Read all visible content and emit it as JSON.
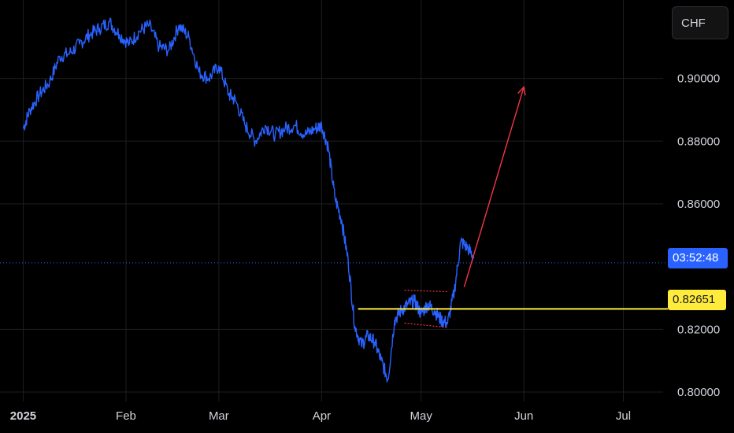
{
  "currency_button": {
    "label": "CHF"
  },
  "countdown_label": "03:52:48",
  "level_label": "0.82651",
  "colors": {
    "background": "#000000",
    "price_line": "#2962ff",
    "level_line": "#ffeb3b",
    "arrow": "#f23645",
    "grid": "#1e1e1e",
    "text": "#d1d4dc"
  },
  "chart_data": {
    "type": "line",
    "series": [
      {
        "x": [
          "2025-01-01",
          "2025-01-03",
          "2025-01-06",
          "2025-01-09",
          "2025-01-12",
          "2025-01-15",
          "2025-01-18",
          "2025-01-21",
          "2025-01-24",
          "2025-01-27",
          "2025-01-30",
          "2025-02-02",
          "2025-02-05",
          "2025-02-08",
          "2025-02-11",
          "2025-02-14",
          "2025-02-17",
          "2025-02-20",
          "2025-02-23",
          "2025-02-26",
          "2025-03-01",
          "2025-03-04",
          "2025-03-06",
          "2025-03-09",
          "2025-03-12",
          "2025-03-15",
          "2025-03-18",
          "2025-03-21",
          "2025-03-24",
          "2025-03-27",
          "2025-03-30",
          "2025-04-01",
          "2025-04-03",
          "2025-04-05",
          "2025-04-07",
          "2025-04-09",
          "2025-04-11",
          "2025-04-13",
          "2025-04-15",
          "2025-04-17",
          "2025-04-19",
          "2025-04-21",
          "2025-04-23",
          "2025-04-25",
          "2025-04-27",
          "2025-04-29",
          "2025-05-01",
          "2025-05-03",
          "2025-05-05",
          "2025-05-07",
          "2025-05-09",
          "2025-05-11",
          "2025-05-13",
          "2025-05-15",
          "2025-05-17"
        ],
        "values": [
          0.884,
          0.89,
          0.895,
          0.899,
          0.907,
          0.908,
          0.911,
          0.914,
          0.916,
          0.918,
          0.914,
          0.911,
          0.915,
          0.917,
          0.91,
          0.909,
          0.917,
          0.913,
          0.902,
          0.9,
          0.904,
          0.895,
          0.893,
          0.885,
          0.88,
          0.885,
          0.882,
          0.884,
          0.885,
          0.882,
          0.884,
          0.885,
          0.878,
          0.862,
          0.855,
          0.842,
          0.821,
          0.815,
          0.818,
          0.816,
          0.81,
          0.804,
          0.823,
          0.826,
          0.828,
          0.829,
          0.825,
          0.828,
          0.826,
          0.823,
          0.822,
          0.832,
          0.848,
          0.846,
          0.843
        ]
      }
    ],
    "y_ticks": [
      "0.90000",
      "0.88000",
      "0.86000",
      "0.82000",
      "0.80000"
    ],
    "x_ticks": [
      {
        "label": "2025",
        "date": "2025-01-01",
        "bold": true
      },
      {
        "label": "Feb",
        "date": "2025-02-01",
        "bold": false
      },
      {
        "label": "Mar",
        "date": "2025-03-01",
        "bold": false
      },
      {
        "label": "Apr",
        "date": "2025-04-01",
        "bold": false
      },
      {
        "label": "May",
        "date": "2025-05-01",
        "bold": false
      },
      {
        "label": "Jun",
        "date": "2025-06-01",
        "bold": false
      },
      {
        "label": "Jul",
        "date": "2025-07-01",
        "bold": false
      }
    ],
    "ylim": [
      0.797,
      0.925
    ],
    "xlim": [
      "2024-12-25",
      "2025-07-13"
    ],
    "current_price": 0.8412,
    "support_level": 0.82651,
    "support_start": "2025-04-12",
    "range_box": {
      "start": "2025-04-26",
      "end": "2025-05-09",
      "top_start": 0.8325,
      "top_end": 0.832,
      "bottom_start": 0.822,
      "bottom_end": 0.8206
    },
    "projection": {
      "from": {
        "date": "2025-05-14",
        "value": 0.8335
      },
      "to": {
        "date": "2025-06-01",
        "value": 0.8973
      }
    },
    "grid": true
  }
}
